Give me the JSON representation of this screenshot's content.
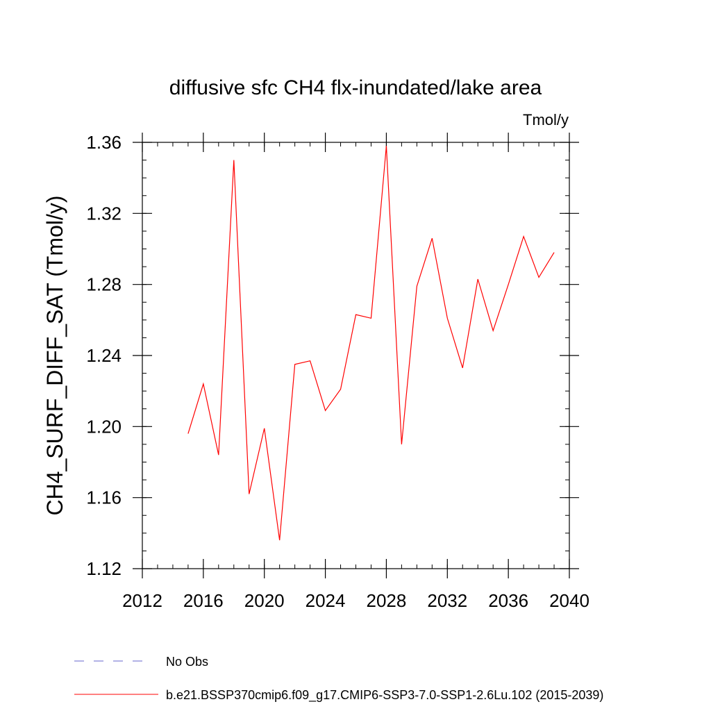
{
  "chart_data": {
    "type": "line",
    "title": "diffusive sfc CH4 flx-inundated/lake area",
    "units": "Tmol/y",
    "ylabel": "CH4_SURF_DIFF_SAT  (Tmol/y)",
    "xlabel": "",
    "xlim": [
      2012,
      2040
    ],
    "ylim": [
      1.12,
      1.36
    ],
    "xticks": [
      "2012",
      "2016",
      "2020",
      "2024",
      "2028",
      "2032",
      "2036",
      "2040"
    ],
    "yticks": [
      "1.12",
      "1.16",
      "1.20",
      "1.24",
      "1.28",
      "1.32",
      "1.36"
    ],
    "grid": false,
    "series": [
      {
        "name": "b.e21.BSSP370cmip6.f09_g17.CMIP6-SSP3-7.0-SSP1-2.6Lu.102 (2015-2039)",
        "color": "#ff0000",
        "x": [
          2015,
          2016,
          2017,
          2018,
          2019,
          2020,
          2021,
          2022,
          2023,
          2024,
          2025,
          2026,
          2027,
          2028,
          2029,
          2030,
          2031,
          2032,
          2033,
          2034,
          2035,
          2036,
          2037,
          2038,
          2039
        ],
        "values": [
          1.196,
          1.224,
          1.184,
          1.35,
          1.162,
          1.199,
          1.136,
          1.235,
          1.237,
          1.209,
          1.221,
          1.263,
          1.261,
          1.358,
          1.19,
          1.279,
          1.306,
          1.261,
          1.233,
          1.283,
          1.254,
          1.28,
          1.307,
          1.284,
          1.298
        ]
      }
    ],
    "legend": {
      "placement": "bottom-left",
      "entries": [
        {
          "label": "No Obs",
          "color": "#6666cc",
          "style": "dashed"
        },
        {
          "label": "b.e21.BSSP370cmip6.f09_g17.CMIP6-SSP3-7.0-SSP1-2.6Lu.102 (2015-2039)",
          "color": "#ff0000",
          "style": "solid"
        }
      ]
    }
  }
}
